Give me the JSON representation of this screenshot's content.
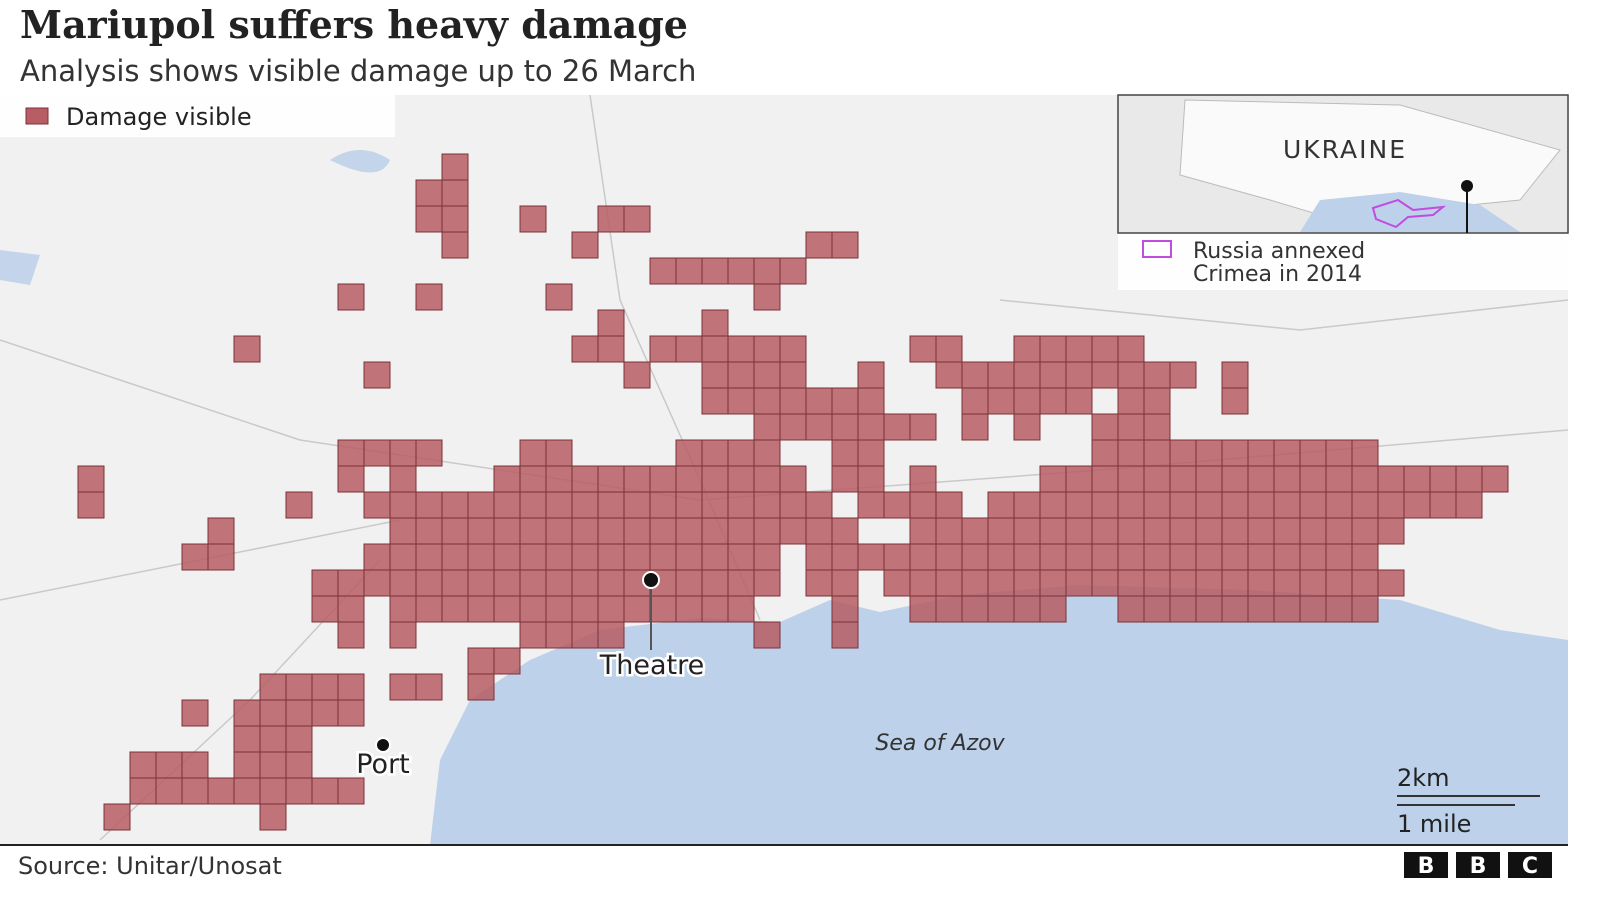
{
  "header": {
    "title": "Mariupol suffers heavy damage",
    "subtitle": "Analysis shows visible damage up to 26 March"
  },
  "legend": {
    "label": "Damage visible"
  },
  "inset": {
    "country": "UKRAINE",
    "legend_lines": [
      "Russia annexed",
      "Crimea in 2014"
    ]
  },
  "labels": {
    "theatre": "Theatre",
    "port": "Port",
    "sea": "Sea of Azov"
  },
  "scale": {
    "km": "2km",
    "mile": "1 mile"
  },
  "footer": {
    "source": "Source: Unitar/Unosat",
    "logo": [
      "B",
      "B",
      "C"
    ]
  }
}
